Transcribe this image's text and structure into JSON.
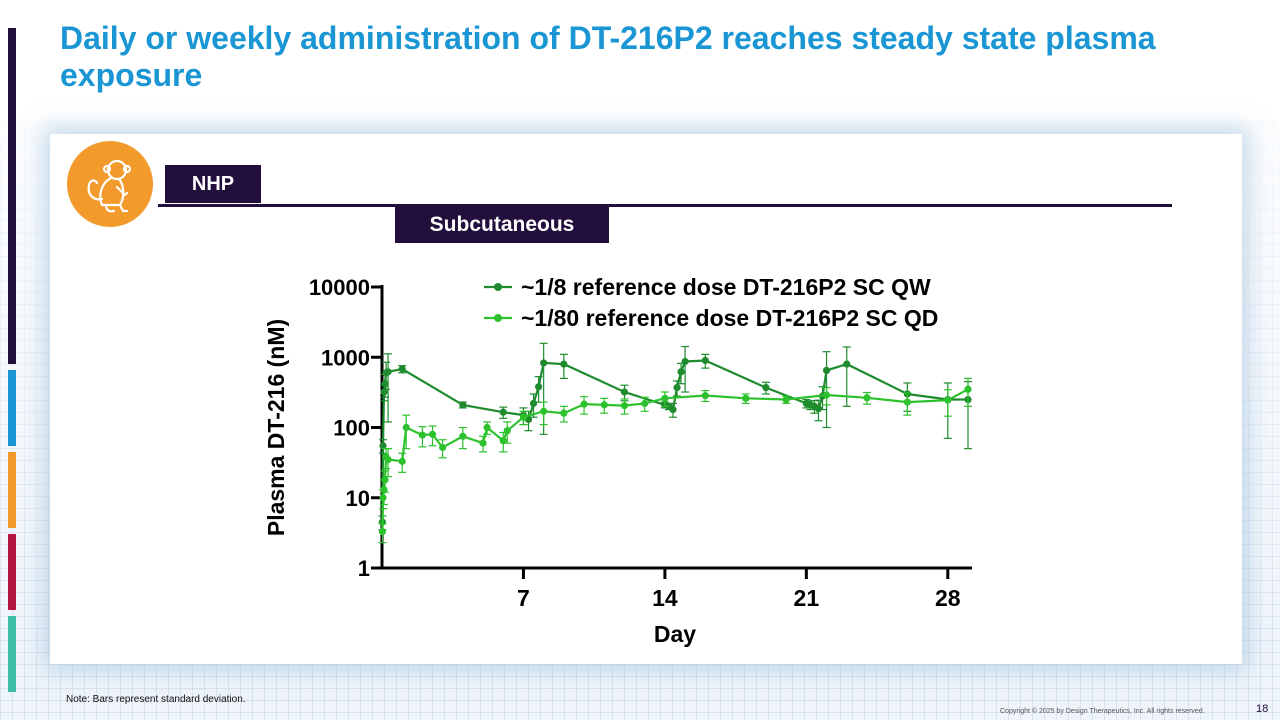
{
  "slide": {
    "title": "Daily or weekly administration of DT-216P2 reaches steady state plasma exposure",
    "species_label": "NHP",
    "route_label": "Subcutaneous",
    "note": "Note: Bars represent standard deviation.",
    "copyright": "Copyright © 2025 by Design Therapeutics, Inc. All rights reserved.",
    "page_number": "18",
    "species_icon": "monkey-icon",
    "colors": {
      "title": "#1a96d4",
      "label_bg": "#230f3c",
      "icon_circle": "#f39a2d",
      "stripes": [
        "#230f3c",
        "#1a96d4",
        "#f39a2d",
        "#b5163f",
        "#3fbfa6"
      ]
    }
  },
  "chart_data": {
    "type": "line",
    "xlabel": "Day",
    "ylabel": "Plasma DT-216 (nM)",
    "xlim": [
      0,
      29
    ],
    "ylim": [
      1,
      10000
    ],
    "yscale": "log",
    "x_ticks": [
      7,
      14,
      21,
      28
    ],
    "y_ticks": [
      {
        "value": 1,
        "label": "1"
      },
      {
        "value": 10,
        "label": "10"
      },
      {
        "value": 100,
        "label": "100"
      },
      {
        "value": 1000,
        "label": "1000"
      },
      {
        "value": 10000,
        "label": "10000"
      }
    ],
    "legend_position": "top",
    "series": [
      {
        "name": "~1/8 reference dose DT-216P2 SC QW",
        "color": "#1e8c2e",
        "x": [
          0.02,
          0.05,
          0.1,
          0.15,
          0.2,
          0.3,
          1,
          4,
          6,
          7,
          7.25,
          7.5,
          7.75,
          8,
          9,
          12,
          14,
          14.2,
          14.4,
          14.6,
          14.8,
          15,
          16,
          19,
          21,
          21.2,
          21.4,
          21.6,
          21.8,
          22,
          23,
          26,
          28,
          29
        ],
        "y": [
          4.5,
          55,
          320,
          420,
          600,
          620,
          680,
          210,
          165,
          150,
          130,
          220,
          380,
          830,
          800,
          320,
          210,
          200,
          180,
          370,
          620,
          870,
          900,
          370,
          220,
          210,
          200,
          185,
          280,
          650,
          800,
          300,
          250,
          250
        ],
        "err": [
          1,
          12,
          80,
          150,
          250,
          500,
          80,
          20,
          30,
          40,
          40,
          80,
          150,
          750,
          300,
          80,
          20,
          20,
          40,
          90,
          200,
          550,
          200,
          70,
          30,
          30,
          40,
          60,
          100,
          550,
          600,
          130,
          180,
          200
        ]
      },
      {
        "name": "~1/80 reference dose DT-216P2 SC QD",
        "color": "#2dc22d",
        "x": [
          0.02,
          0.05,
          0.1,
          0.15,
          0.2,
          0.3,
          1,
          1.2,
          2,
          2.5,
          3,
          4,
          5,
          5.2,
          6,
          6.2,
          7,
          8,
          9,
          10,
          11,
          12,
          13,
          14,
          16,
          18,
          20,
          22,
          24,
          26,
          28,
          29
        ],
        "y": [
          3.3,
          10,
          13,
          18,
          38,
          35,
          33,
          100,
          78,
          80,
          52,
          75,
          60,
          100,
          65,
          90,
          140,
          170,
          160,
          215,
          210,
          205,
          220,
          260,
          285,
          260,
          250,
          290,
          265,
          230,
          245,
          350
        ],
        "err": [
          1,
          3,
          5,
          6,
          12,
          15,
          10,
          50,
          25,
          25,
          15,
          25,
          15,
          20,
          20,
          30,
          30,
          60,
          40,
          60,
          50,
          50,
          50,
          60,
          50,
          40,
          30,
          80,
          50,
          80,
          100,
          150
        ]
      }
    ]
  }
}
